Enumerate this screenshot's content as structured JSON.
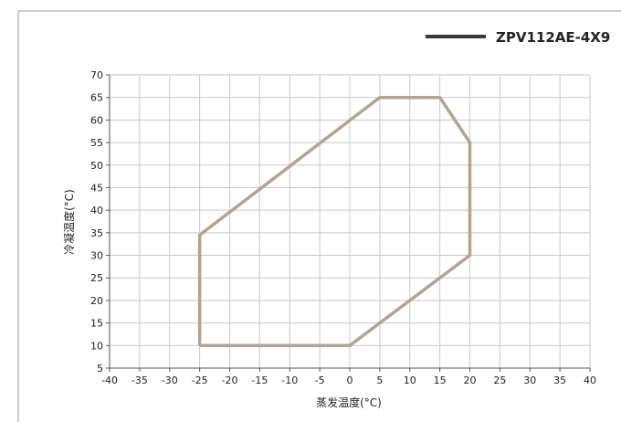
{
  "chart_data": {
    "type": "line",
    "title": "",
    "xlabel": "蒸发温度(°C)",
    "ylabel": "冷凝温度(°C)",
    "xlim": [
      -40,
      40
    ],
    "ylim": [
      5,
      70
    ],
    "x_ticks": [
      -40,
      -35,
      -30,
      -25,
      -20,
      -15,
      -10,
      -5,
      0,
      5,
      10,
      15,
      20,
      25,
      30,
      35,
      40
    ],
    "y_ticks": [
      5,
      10,
      15,
      20,
      25,
      30,
      35,
      40,
      45,
      50,
      55,
      60,
      65,
      70
    ],
    "grid": true,
    "legend_position": "top-right",
    "series": [
      {
        "name": "ZPV112AE-4X9",
        "color": "#b3a48d",
        "legend_color": "#3a3a34",
        "closed": true,
        "points": [
          {
            "x": -25,
            "y": 10
          },
          {
            "x": -25,
            "y": 34.5
          },
          {
            "x": 5,
            "y": 65
          },
          {
            "x": 15,
            "y": 65
          },
          {
            "x": 20,
            "y": 55
          },
          {
            "x": 20,
            "y": 30
          },
          {
            "x": 0,
            "y": 10
          },
          {
            "x": -25,
            "y": 10
          }
        ]
      }
    ]
  }
}
